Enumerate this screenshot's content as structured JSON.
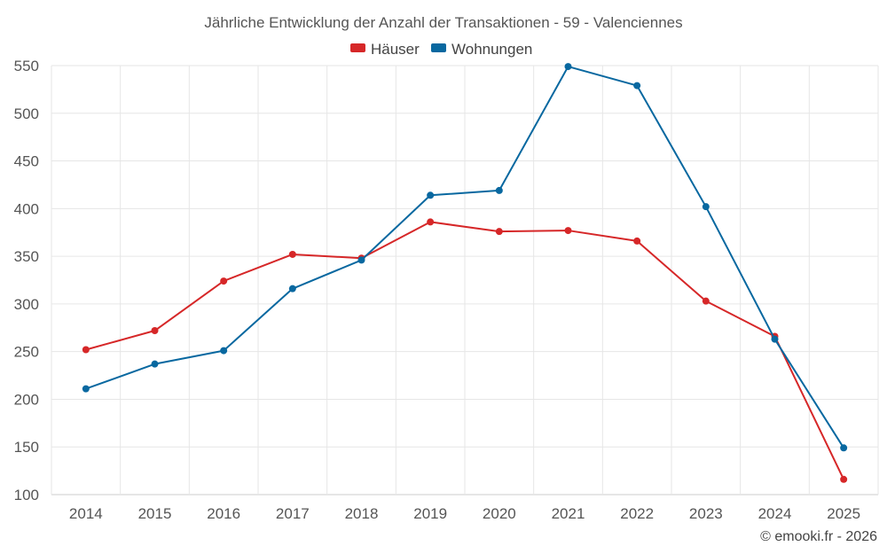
{
  "chart_data": {
    "type": "line",
    "title": "Jährliche Entwicklung der Anzahl der Transaktionen - 59 - Valenciennes",
    "categories": [
      "2014",
      "2015",
      "2016",
      "2017",
      "2018",
      "2019",
      "2020",
      "2021",
      "2022",
      "2023",
      "2024",
      "2025"
    ],
    "series": [
      {
        "name": "Häuser",
        "color": "#d62728",
        "values": [
          252,
          272,
          324,
          352,
          348,
          386,
          376,
          377,
          366,
          303,
          266,
          116
        ]
      },
      {
        "name": "Wohnungen",
        "color": "#0868a0",
        "values": [
          211,
          237,
          251,
          316,
          346,
          414,
          419,
          549,
          529,
          402,
          263,
          149
        ]
      }
    ],
    "yticks": [
      100,
      150,
      200,
      250,
      300,
      350,
      400,
      450,
      500,
      550
    ],
    "ylim": [
      100,
      550
    ],
    "xlabel": "",
    "ylabel": "",
    "grid": true,
    "legend_position": "top-center"
  },
  "credit": "© emooki.fr - 2026"
}
